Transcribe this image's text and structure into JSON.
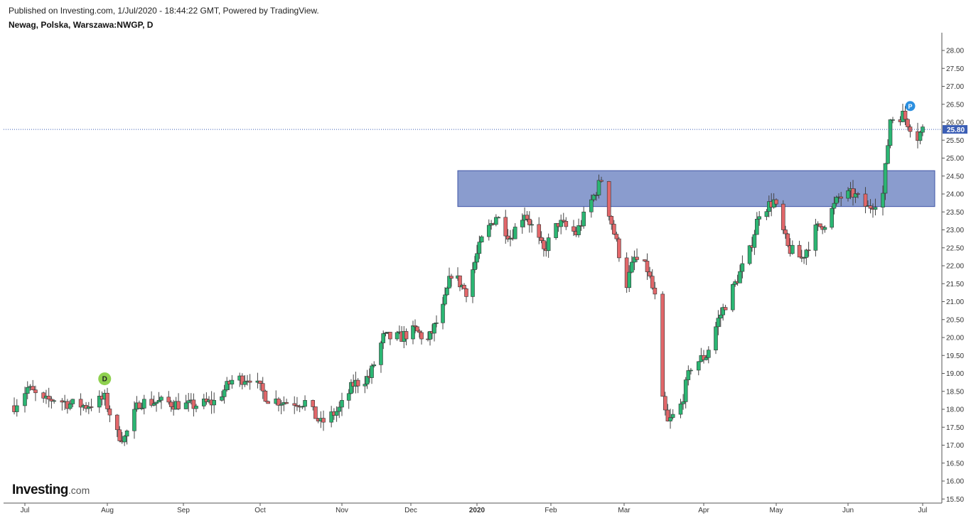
{
  "header": {
    "published": "Published on Investing.com, 1/Jul/2020 - 18:44:22 GMT, Powered by TradingView.",
    "symbol": "Newag, Polska, Warszawa:NWGP, D"
  },
  "branding": {
    "logo_main": "Investing",
    "logo_domain": ".com"
  },
  "colors": {
    "up": "#26a69a",
    "up_fill": "#2bb673",
    "down": "#ef5350",
    "down_fill": "#e2676a",
    "candle_border": "#333333",
    "zone_fill": "#8a9cce",
    "zone_border": "#3f55a6",
    "last_price": "#3b5eb5",
    "marker_d": "#8fd14f",
    "marker_p": "#2b8fe0"
  },
  "chart_data": {
    "type": "candlestick",
    "title": "Newag, Polska, Warszawa:NWGP, D",
    "y_axis": {
      "min": 15.5,
      "max": 28.0,
      "side": "right",
      "ticks": [
        "28.00",
        "27.50",
        "27.00",
        "26.50",
        "26.00",
        "25.50",
        "25.00",
        "24.50",
        "24.00",
        "23.50",
        "23.00",
        "22.50",
        "22.00",
        "21.50",
        "21.00",
        "20.50",
        "20.00",
        "19.50",
        "19.00",
        "18.50",
        "18.00",
        "17.50",
        "17.00",
        "16.50",
        "16.00",
        "15.50"
      ]
    },
    "x_axis": {
      "labels": [
        "Jul",
        "Aug",
        "Sep",
        "Oct",
        "Nov",
        "Dec",
        "2020",
        "Feb",
        "Mar",
        "Apr",
        "May",
        "Jun",
        "Jul"
      ],
      "bold": [
        "2020"
      ]
    },
    "last_price": {
      "value": 25.8,
      "label": "25.80"
    },
    "zone": {
      "from": "2019-12-23",
      "to": "2020-07-01",
      "low": 23.65,
      "high": 24.65
    },
    "markers": [
      {
        "label": "D",
        "date": "2019-07-31",
        "price": 18.85
      },
      {
        "label": "P",
        "date": "2020-06-26",
        "price": 26.45
      }
    ],
    "closes": [
      {
        "d": "2019-06-27",
        "c": 18.1
      },
      {
        "d": "2019-07-02",
        "c": 18.6
      },
      {
        "d": "2019-07-08",
        "c": 18.2
      },
      {
        "d": "2019-07-12",
        "c": 18.3
      },
      {
        "d": "2019-07-18",
        "c": 18.15
      },
      {
        "d": "2019-07-24",
        "c": 18.1
      },
      {
        "d": "2019-07-31",
        "c": 18.3
      },
      {
        "d": "2019-08-05",
        "c": 17.3
      },
      {
        "d": "2019-08-08",
        "c": 17.2
      },
      {
        "d": "2019-08-14",
        "c": 18.2
      },
      {
        "d": "2019-08-23",
        "c": 18.2
      },
      {
        "d": "2019-09-04",
        "c": 18.1
      },
      {
        "d": "2019-09-13",
        "c": 18.2
      },
      {
        "d": "2019-09-20",
        "c": 18.8
      },
      {
        "d": "2019-09-27",
        "c": 18.9
      },
      {
        "d": "2019-10-04",
        "c": 18.3
      },
      {
        "d": "2019-10-11",
        "c": 18.2
      },
      {
        "d": "2019-10-18",
        "c": 18.2
      },
      {
        "d": "2019-10-24",
        "c": 17.6
      },
      {
        "d": "2019-10-31",
        "c": 18.0
      },
      {
        "d": "2019-11-06",
        "c": 18.7
      },
      {
        "d": "2019-11-13",
        "c": 18.9
      },
      {
        "d": "2019-11-19",
        "c": 20.0
      },
      {
        "d": "2019-11-26",
        "c": 20.0
      },
      {
        "d": "2019-12-03",
        "c": 20.2
      },
      {
        "d": "2019-12-09",
        "c": 19.9
      },
      {
        "d": "2019-12-16",
        "c": 20.8
      },
      {
        "d": "2019-12-20",
        "c": 21.8
      },
      {
        "d": "2019-12-27",
        "c": 21.3
      },
      {
        "d": "2020-01-03",
        "c": 22.7
      },
      {
        "d": "2020-01-09",
        "c": 23.4
      },
      {
        "d": "2020-01-15",
        "c": 22.8
      },
      {
        "d": "2020-01-21",
        "c": 23.5
      },
      {
        "d": "2020-01-29",
        "c": 22.4
      },
      {
        "d": "2020-02-04",
        "c": 23.2
      },
      {
        "d": "2020-02-11",
        "c": 22.9
      },
      {
        "d": "2020-02-17",
        "c": 23.8
      },
      {
        "d": "2020-02-21",
        "c": 24.4
      },
      {
        "d": "2020-02-25",
        "c": 23.2
      },
      {
        "d": "2020-03-02",
        "c": 21.5
      },
      {
        "d": "2020-03-05",
        "c": 22.2
      },
      {
        "d": "2020-03-10",
        "c": 21.9
      },
      {
        "d": "2020-03-13",
        "c": 21.1
      },
      {
        "d": "2020-03-16",
        "c": 18.2
      },
      {
        "d": "2020-03-18",
        "c": 17.6
      },
      {
        "d": "2020-03-23",
        "c": 18.1
      },
      {
        "d": "2020-03-27",
        "c": 19.2
      },
      {
        "d": "2020-04-02",
        "c": 19.5
      },
      {
        "d": "2020-04-07",
        "c": 20.5
      },
      {
        "d": "2020-04-14",
        "c": 21.5
      },
      {
        "d": "2020-04-20",
        "c": 22.4
      },
      {
        "d": "2020-04-24",
        "c": 23.5
      },
      {
        "d": "2020-04-30",
        "c": 23.8
      },
      {
        "d": "2020-05-06",
        "c": 22.5
      },
      {
        "d": "2020-05-12",
        "c": 22.2
      },
      {
        "d": "2020-05-18",
        "c": 23.0
      },
      {
        "d": "2020-05-22",
        "c": 23.2
      },
      {
        "d": "2020-05-28",
        "c": 23.9
      },
      {
        "d": "2020-06-03",
        "c": 24.0
      },
      {
        "d": "2020-06-09",
        "c": 23.6
      },
      {
        "d": "2020-06-15",
        "c": 24.0
      },
      {
        "d": "2020-06-18",
        "c": 26.1
      },
      {
        "d": "2020-06-23",
        "c": 26.2
      },
      {
        "d": "2020-06-29",
        "c": 25.6
      },
      {
        "d": "2020-07-01",
        "c": 25.8
      }
    ]
  }
}
